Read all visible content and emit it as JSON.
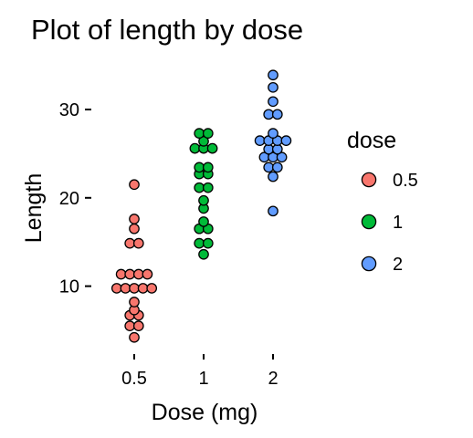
{
  "chart_data": {
    "type": "scatter",
    "subtype": "dotplot",
    "title": "Plot of length  by dose",
    "xlabel": "Dose (mg)",
    "ylabel": "Length",
    "categories": [
      "0.5",
      "1",
      "2"
    ],
    "ylim": [
      3,
      35
    ],
    "yticks": [
      10,
      20,
      30
    ],
    "grid": false,
    "legend": {
      "title": "dose",
      "placement": "right",
      "entries": [
        "0.5",
        "1",
        "2"
      ]
    },
    "series": [
      {
        "name": "0.5",
        "color": "#F8766D",
        "values": [
          4.2,
          5.2,
          5.8,
          6.4,
          7.0,
          7.3,
          8.2,
          9.4,
          9.7,
          9.7,
          10.0,
          10.0,
          11.2,
          11.2,
          11.5,
          11.5,
          14.5,
          15.2,
          16.5,
          17.6,
          21.5
        ]
      },
      {
        "name": "1",
        "color": "#00BA38",
        "values": [
          13.6,
          14.5,
          15.2,
          16.5,
          16.5,
          17.3,
          18.8,
          19.7,
          20.8,
          21.5,
          22.4,
          23.0,
          23.3,
          23.6,
          25.2,
          25.8,
          25.8,
          26.4,
          27.3,
          27.3
        ]
      },
      {
        "name": "2",
        "color": "#619CFF",
        "values": [
          18.5,
          22.4,
          23.3,
          23.6,
          24.5,
          24.5,
          24.8,
          25.5,
          25.5,
          26.4,
          26.4,
          26.4,
          26.7,
          27.3,
          29.4,
          29.5,
          30.9,
          32.5,
          33.9
        ]
      }
    ]
  }
}
